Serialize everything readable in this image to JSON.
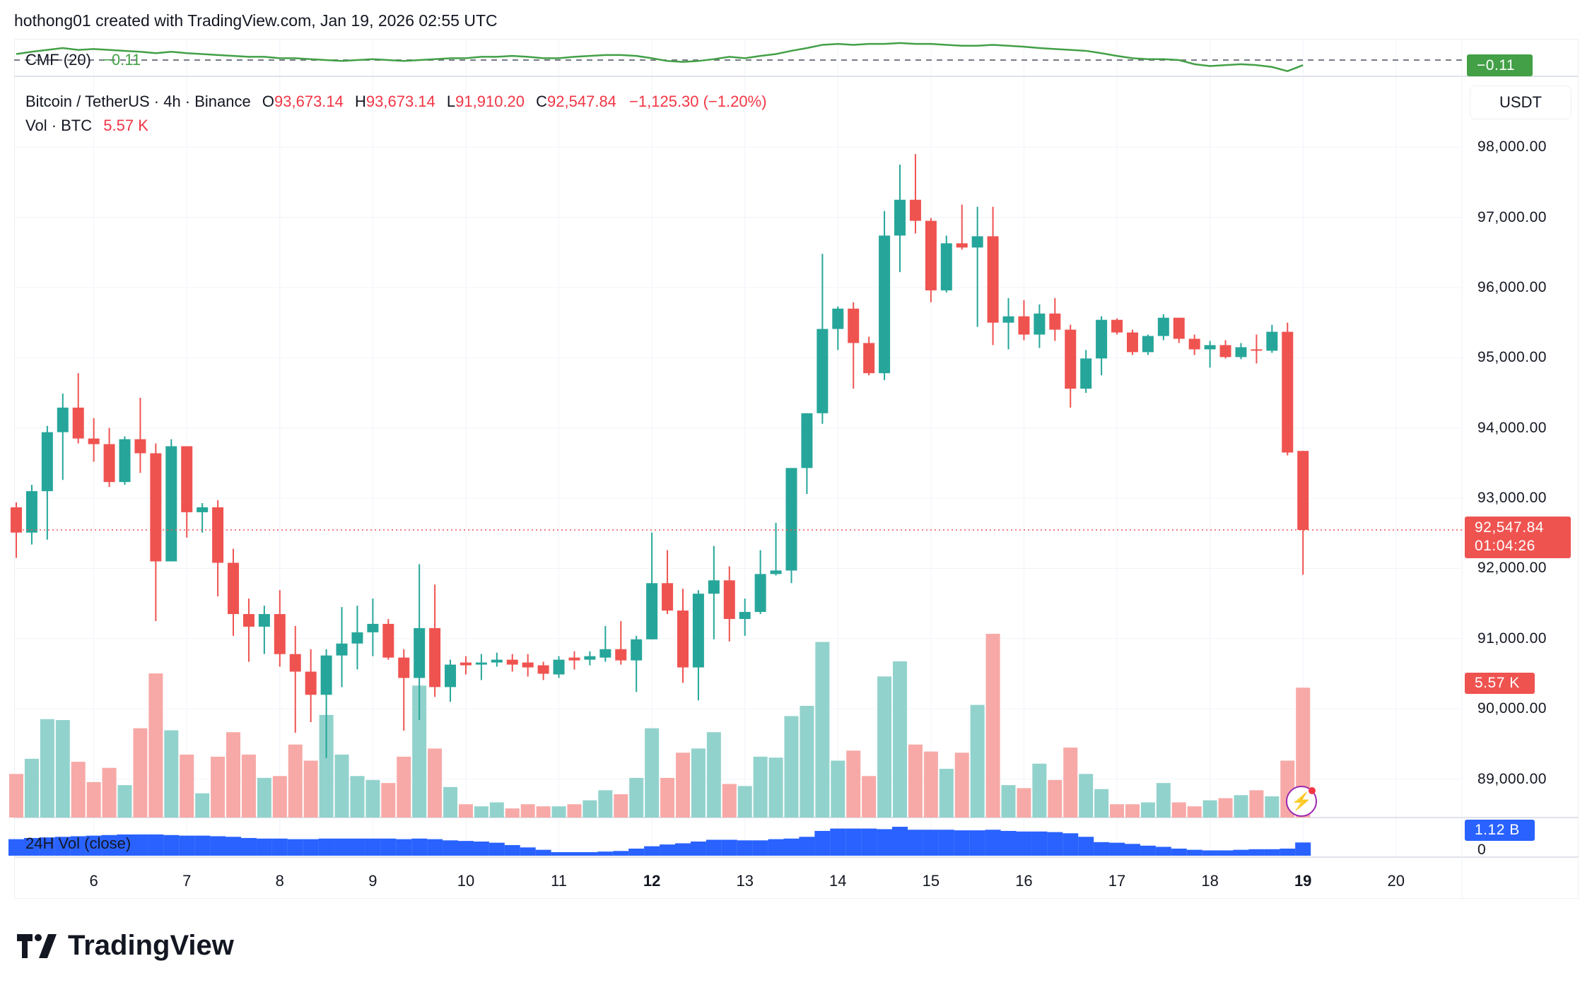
{
  "header": {
    "attribution": "hothong01 created with TradingView.com, Jan 19, 2026 02:55 UTC"
  },
  "indicator": {
    "name": "CMF (20)",
    "value": "−0.11",
    "axis_label": "−0.11"
  },
  "legend": {
    "symbol": "Bitcoin / TetherUS · 4h · Binance",
    "o_label": "O",
    "open": "93,673.14",
    "h_label": "H",
    "high": "93,673.14",
    "l_label": "L",
    "low": "91,910.20",
    "c_label": "C",
    "close": "92,547.84",
    "change": "−1,125.30 (−1.20%)",
    "vol_label": "Vol · BTC",
    "vol_value": "5.57 K"
  },
  "currency_button": "USDT",
  "price_tag": {
    "price": "92,547.84",
    "countdown": "01:04:26"
  },
  "volume_tag": "5.57 K",
  "vol24_label": "24H Vol (close)",
  "vol24_tag": "1.12 B",
  "vol24_zero": "0",
  "brand": "TradingView",
  "colors": {
    "up": "#26a69a",
    "down": "#ef5350",
    "up_vol": "#92d2cc",
    "down_vol": "#f7a9a7",
    "cmf": "#43a047",
    "vol24": "#2962ff",
    "grid": "#f0f3fa"
  },
  "chart_data": {
    "type": "candlestick",
    "title": "Bitcoin / TetherUS · 4h · Binance",
    "ylabel": "USDT",
    "ylim": [
      88400,
      99000
    ],
    "y_ticks": [
      "98,000.00",
      "97,000.00",
      "96,000.00",
      "95,000.00",
      "94,000.00",
      "93,000.00",
      "92,000.00",
      "91,000.00",
      "90,000.00",
      "89,000.00"
    ],
    "x_ticks": [
      {
        "label": "6",
        "index": 5
      },
      {
        "label": "7",
        "index": 11
      },
      {
        "label": "8",
        "index": 17
      },
      {
        "label": "9",
        "index": 23
      },
      {
        "label": "10",
        "index": 29
      },
      {
        "label": "11",
        "index": 35
      },
      {
        "label": "12",
        "index": 41,
        "bold": true
      },
      {
        "label": "13",
        "index": 47
      },
      {
        "label": "14",
        "index": 53
      },
      {
        "label": "15",
        "index": 59
      },
      {
        "label": "16",
        "index": 65
      },
      {
        "label": "17",
        "index": 71
      },
      {
        "label": "18",
        "index": 77
      },
      {
        "label": "19",
        "index": 83,
        "bold": true
      },
      {
        "label": "20",
        "index": 89
      }
    ],
    "last_price": 92547.84,
    "ohlc": [
      [
        92870,
        92940,
        92150,
        92510
      ],
      [
        92510,
        93190,
        92340,
        93100
      ],
      [
        93100,
        94030,
        92410,
        93940
      ],
      [
        93940,
        94490,
        93260,
        94290
      ],
      [
        94290,
        94780,
        93780,
        93850
      ],
      [
        93850,
        94140,
        93520,
        93770
      ],
      [
        93770,
        94000,
        93160,
        93230
      ],
      [
        93230,
        93880,
        93190,
        93840
      ],
      [
        93840,
        94430,
        93360,
        93640
      ],
      [
        93640,
        93780,
        91250,
        92100
      ],
      [
        92100,
        93840,
        92100,
        93740
      ],
      [
        93740,
        93740,
        92440,
        92800
      ],
      [
        92800,
        92930,
        92510,
        92870
      ],
      [
        92870,
        92970,
        91600,
        92080
      ],
      [
        92080,
        92280,
        91040,
        91350
      ],
      [
        91350,
        91570,
        90670,
        91170
      ],
      [
        91170,
        91470,
        90780,
        91350
      ],
      [
        91350,
        91690,
        90600,
        90780
      ],
      [
        90780,
        91180,
        89660,
        90530
      ],
      [
        90530,
        90850,
        89810,
        90200
      ],
      [
        90200,
        90850,
        89300,
        90760
      ],
      [
        90760,
        91450,
        90310,
        90930
      ],
      [
        90930,
        91470,
        90560,
        91090
      ],
      [
        91090,
        91570,
        90750,
        91210
      ],
      [
        91210,
        91280,
        90700,
        90730
      ],
      [
        90730,
        90850,
        89690,
        90440
      ],
      [
        90440,
        92060,
        89840,
        91150
      ],
      [
        91150,
        91770,
        90170,
        90310
      ],
      [
        90310,
        90700,
        90100,
        90630
      ],
      [
        90660,
        90750,
        90490,
        90620
      ],
      [
        90630,
        90780,
        90410,
        90660
      ],
      [
        90660,
        90800,
        90600,
        90700
      ],
      [
        90700,
        90780,
        90530,
        90630
      ],
      [
        90660,
        90780,
        90460,
        90590
      ],
      [
        90620,
        90670,
        90410,
        90500
      ],
      [
        90490,
        90750,
        90440,
        90700
      ],
      [
        90730,
        90820,
        90560,
        90690
      ],
      [
        90700,
        90820,
        90620,
        90750
      ],
      [
        90730,
        91180,
        90670,
        90850
      ],
      [
        90850,
        91250,
        90630,
        90690
      ],
      [
        90690,
        91040,
        90240,
        90990
      ],
      [
        90990,
        92510,
        90990,
        91790
      ],
      [
        91790,
        92260,
        91350,
        91400
      ],
      [
        91400,
        91710,
        90370,
        90590
      ],
      [
        90590,
        91690,
        90120,
        91640
      ],
      [
        91640,
        92320,
        90990,
        91830
      ],
      [
        91830,
        92030,
        90960,
        91280
      ],
      [
        91280,
        91570,
        91040,
        91380
      ],
      [
        91380,
        92260,
        91350,
        91920
      ],
      [
        91920,
        92650,
        91900,
        91970
      ],
      [
        91970,
        93430,
        91790,
        93430
      ],
      [
        93430,
        94210,
        93060,
        94210
      ],
      [
        94210,
        96480,
        94060,
        95410
      ],
      [
        95410,
        95730,
        95110,
        95700
      ],
      [
        95700,
        95790,
        94560,
        95210
      ],
      [
        95210,
        95300,
        94750,
        94780
      ],
      [
        94780,
        97090,
        94680,
        96740
      ],
      [
        96740,
        97750,
        96220,
        97250
      ],
      [
        97250,
        97900,
        96770,
        96950
      ],
      [
        96950,
        96990,
        95790,
        95960
      ],
      [
        95960,
        96740,
        95930,
        96630
      ],
      [
        96630,
        97180,
        96540,
        96570
      ],
      [
        96570,
        97150,
        95440,
        96730
      ],
      [
        96730,
        97150,
        95180,
        95500
      ],
      [
        95500,
        95850,
        95120,
        95590
      ],
      [
        95590,
        95820,
        95250,
        95330
      ],
      [
        95330,
        95760,
        95140,
        95630
      ],
      [
        95630,
        95850,
        95240,
        95400
      ],
      [
        95400,
        95470,
        94290,
        94560
      ],
      [
        94560,
        95110,
        94500,
        94990
      ],
      [
        94990,
        95590,
        94750,
        95540
      ],
      [
        95540,
        95560,
        95330,
        95360
      ],
      [
        95360,
        95400,
        95040,
        95080
      ],
      [
        95080,
        95330,
        95040,
        95310
      ],
      [
        95310,
        95620,
        95250,
        95570
      ],
      [
        95570,
        95570,
        95210,
        95270
      ],
      [
        95270,
        95330,
        95040,
        95120
      ],
      [
        95120,
        95240,
        94860,
        95180
      ],
      [
        95180,
        95250,
        94990,
        95010
      ],
      [
        95010,
        95210,
        94980,
        95150
      ],
      [
        95120,
        95330,
        94920,
        95100
      ],
      [
        95100,
        95470,
        95070,
        95370
      ],
      [
        95370,
        95500,
        93610,
        93650
      ],
      [
        93673.14,
        93673.14,
        91910.2,
        92547.84
      ]
    ],
    "volume_k": [
      1.87,
      2.52,
      4.22,
      4.18,
      2.39,
      1.52,
      2.13,
      1.39,
      3.83,
      6.18,
      3.74,
      2.7,
      1.04,
      2.61,
      3.66,
      2.7,
      1.7,
      1.78,
      3.13,
      2.44,
      4.4,
      2.7,
      1.78,
      1.61,
      1.48,
      2.61,
      5.66,
      2.96,
      1.31,
      0.57,
      0.48,
      0.65,
      0.39,
      0.57,
      0.48,
      0.48,
      0.57,
      0.74,
      1.17,
      1.0,
      1.7,
      3.83,
      1.7,
      2.78,
      2.96,
      3.66,
      1.44,
      1.35,
      2.61,
      2.57,
      4.35,
      4.79,
      7.53,
      2.44,
      2.87,
      1.78,
      6.05,
      6.7,
      3.13,
      2.83,
      2.09,
      2.78,
      4.83,
      7.88,
      1.39,
      1.26,
      2.31,
      1.61,
      3.0,
      1.87,
      1.22,
      0.57,
      0.57,
      0.65,
      1.48,
      0.65,
      0.48,
      0.74,
      0.83,
      0.96,
      1.17,
      0.91,
      2.44,
      5.57
    ],
    "vol24_b": [
      1.4,
      1.5,
      1.55,
      1.6,
      1.65,
      1.7,
      1.75,
      1.8,
      1.8,
      1.8,
      1.75,
      1.7,
      1.7,
      1.65,
      1.6,
      1.5,
      1.45,
      1.45,
      1.4,
      1.4,
      1.45,
      1.45,
      1.45,
      1.45,
      1.45,
      1.4,
      1.45,
      1.4,
      1.3,
      1.25,
      1.2,
      1.1,
      0.9,
      0.7,
      0.5,
      0.3,
      0.3,
      0.3,
      0.35,
      0.4,
      0.6,
      0.8,
      0.95,
      1.05,
      1.2,
      1.35,
      1.35,
      1.3,
      1.3,
      1.4,
      1.45,
      1.6,
      2.1,
      2.3,
      2.3,
      2.3,
      2.25,
      2.45,
      2.2,
      2.2,
      2.2,
      2.15,
      2.15,
      2.2,
      2.1,
      2.05,
      2.05,
      2.0,
      1.9,
      1.6,
      1.15,
      1.1,
      1.0,
      0.85,
      0.75,
      0.6,
      0.5,
      0.45,
      0.45,
      0.5,
      0.55,
      0.55,
      0.6,
      1.12
    ],
    "cmf": [
      0.13,
      0.18,
      0.22,
      0.26,
      0.22,
      0.24,
      0.22,
      0.2,
      0.18,
      0.15,
      0.18,
      0.15,
      0.13,
      0.11,
      0.09,
      0.07,
      0.07,
      0.04,
      0.04,
      0.02,
      0,
      -0.02,
      0,
      0.02,
      0,
      -0.02,
      0,
      0.02,
      0.04,
      0.04,
      0.07,
      0.07,
      0.09,
      0.07,
      0.04,
      0.04,
      0.07,
      0.09,
      0.11,
      0.11,
      0.09,
      0.04,
      -0.02,
      -0.04,
      -0.02,
      0.02,
      0.07,
      0.04,
      0.09,
      0.13,
      0.2,
      0.26,
      0.33,
      0.35,
      0.33,
      0.35,
      0.35,
      0.37,
      0.35,
      0.35,
      0.33,
      0.31,
      0.31,
      0.33,
      0.31,
      0.29,
      0.26,
      0.24,
      0.22,
      0.2,
      0.15,
      0.09,
      0.04,
      0.02,
      0.02,
      0,
      -0.09,
      -0.13,
      -0.11,
      -0.09,
      -0.11,
      -0.15,
      -0.24,
      -0.11
    ]
  }
}
